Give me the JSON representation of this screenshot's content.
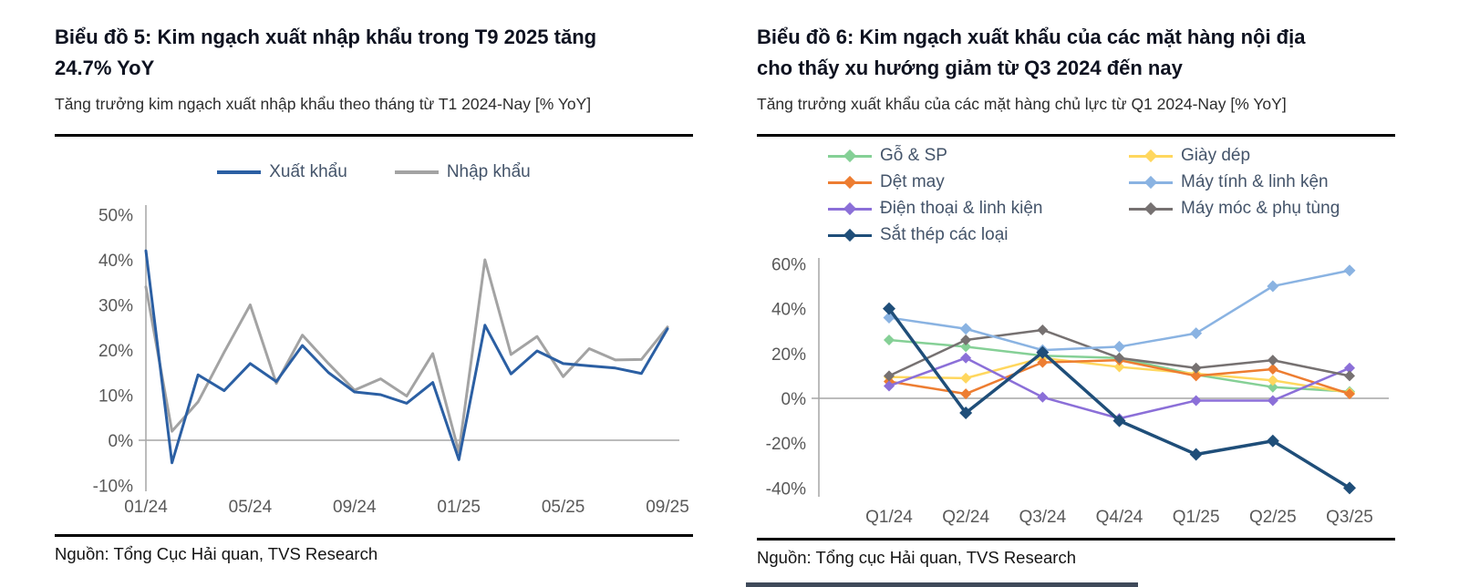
{
  "chart_data": [
    {
      "type": "line",
      "title_lines": [
        "Biểu đồ 5: Kim ngạch xuất nhập khẩu trong T9 2025 tăng",
        "24.7% YoY"
      ],
      "subtitle": "Tăng trưởng kim ngạch xuất nhập khẩu theo tháng từ T1 2024-Nay [% YoY]",
      "source": "Nguồn: Tổng Cục Hải quan, TVS Research",
      "x": [
        "01/24",
        "02/24",
        "03/24",
        "04/24",
        "05/24",
        "06/24",
        "07/24",
        "08/24",
        "09/24",
        "10/24",
        "11/24",
        "12/24",
        "01/25",
        "02/25",
        "03/25",
        "04/25",
        "05/25",
        "06/25",
        "07/25",
        "08/25",
        "09/25"
      ],
      "x_tick_labels": [
        "01/24",
        "05/24",
        "09/24",
        "01/25",
        "05/25",
        "09/25"
      ],
      "ylim": [
        -10,
        50
      ],
      "yticks": [
        50,
        40,
        30,
        20,
        10,
        0,
        -10
      ],
      "ytick_suffix": "%",
      "grid": false,
      "legend_position": "top-center",
      "markers": "none",
      "series": [
        {
          "name": "Xuất khẩu",
          "color": "#2b5fa3",
          "values": [
            42,
            -5,
            14.5,
            11,
            17,
            13,
            21,
            15,
            10.7,
            10.1,
            8.2,
            12.8,
            -4.3,
            25.5,
            14.7,
            19.8,
            17,
            16.5,
            16,
            14.8,
            24.7
          ]
        },
        {
          "name": "Nhập khẩu",
          "color": "#a3a3a3",
          "values": [
            34,
            2,
            8.5,
            19.5,
            30,
            12.6,
            23.3,
            17,
            11.1,
            13.6,
            9.8,
            19.2,
            -2.6,
            40,
            19,
            23,
            14.1,
            20.3,
            17.8,
            17.9,
            25.1
          ]
        }
      ]
    },
    {
      "type": "line",
      "title_lines": [
        "Biểu đồ 6: Kim ngạch xuất khẩu của các mặt hàng nội địa",
        "cho thấy xu hướng giảm từ Q3 2024 đến nay"
      ],
      "subtitle": "Tăng trưởng xuất khẩu của các mặt hàng chủ lực từ Q1 2024-Nay [% YoY]",
      "source": "Nguồn: Tổng cục Hải quan, TVS Research",
      "x": [
        "Q1/24",
        "Q2/24",
        "Q3/24",
        "Q4/24",
        "Q1/25",
        "Q2/25",
        "Q3/25"
      ],
      "x_tick_labels": [
        "Q1/24",
        "Q2/24",
        "Q3/24",
        "Q4/24",
        "Q1/25",
        "Q2/25",
        "Q3/25"
      ],
      "ylim": [
        -40,
        60
      ],
      "yticks": [
        60,
        40,
        20,
        0,
        -20,
        -40
      ],
      "ytick_suffix": "%",
      "grid": false,
      "legend_position": "top-two-columns",
      "markers": "diamond",
      "series": [
        {
          "name": "Gỗ & SP",
          "color": "#85d096",
          "values": [
            26,
            23,
            19,
            18,
            10.5,
            5,
            3
          ]
        },
        {
          "name": "Giày dép",
          "color": "#ffd75e",
          "values": [
            9.5,
            9,
            18,
            14,
            11,
            8,
            2.5
          ]
        },
        {
          "name": "Dệt may",
          "color": "#ed7d31",
          "values": [
            7.5,
            2,
            16,
            17,
            10,
            13,
            2
          ]
        },
        {
          "name": "Máy tính & linh kện",
          "color": "#8ab3e2",
          "values": [
            36,
            31,
            21.5,
            23,
            29,
            50,
            57
          ]
        },
        {
          "name": "Điện thoại & linh kiện",
          "color": "#8b6fd8",
          "values": [
            5.5,
            18,
            0.5,
            -9,
            -1,
            -1,
            13.5
          ]
        },
        {
          "name": "Máy móc & phụ tùng",
          "color": "#767171",
          "values": [
            10,
            26,
            30.5,
            18,
            13.5,
            17,
            10
          ]
        },
        {
          "name": "Sắt thép các loại",
          "color": "#1f4e79",
          "values": [
            40,
            -6.5,
            20.5,
            -10,
            -25,
            -19,
            -40
          ]
        }
      ]
    }
  ]
}
